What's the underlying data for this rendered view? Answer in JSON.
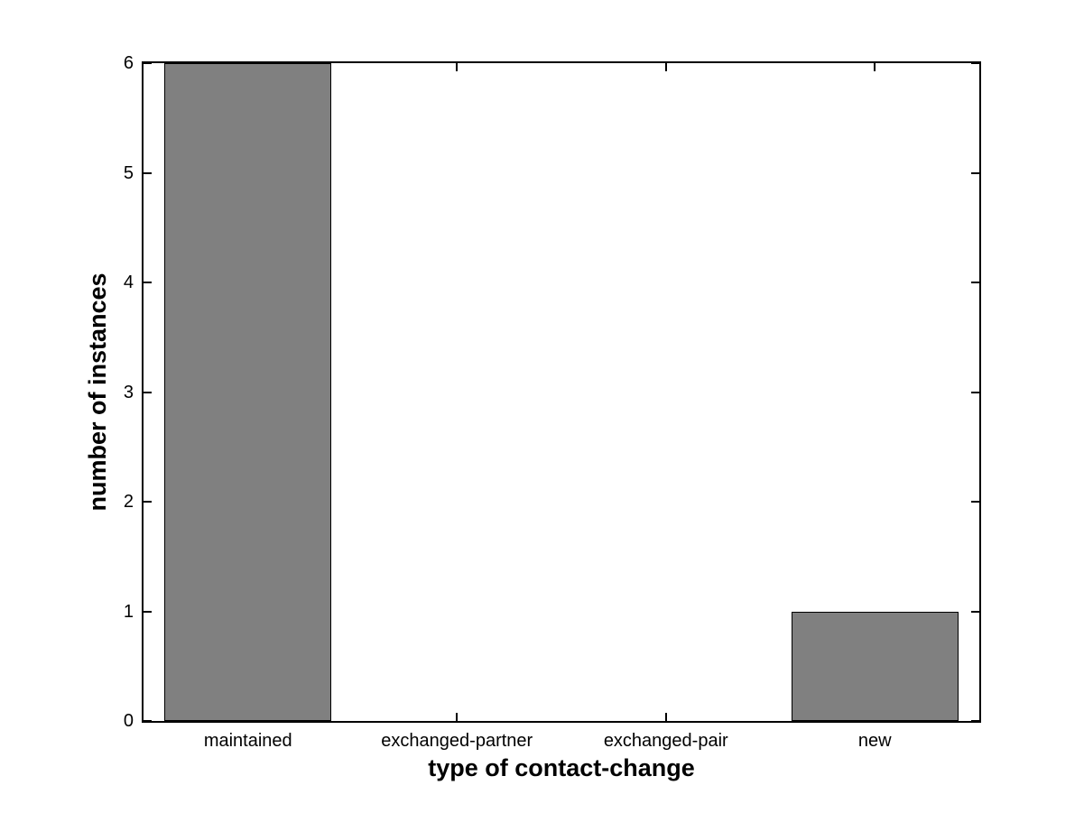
{
  "chart_data": {
    "type": "bar",
    "title": "",
    "categories": [
      "maintained",
      "exchanged-partner",
      "exchanged-pair",
      "new"
    ],
    "values": [
      6,
      0,
      0,
      1
    ],
    "xlabel": "type of contact-change",
    "ylabel": "number of instances",
    "ylim": [
      0,
      6
    ],
    "yticks": [
      0,
      1,
      2,
      3,
      4,
      5,
      6
    ],
    "ytick_labels": [
      "0",
      "1",
      "2",
      "3",
      "4",
      "5",
      "6"
    ],
    "bar_width_fraction": 0.8,
    "bar_color": "#808080",
    "bar_edge_color": "#000000",
    "axis_color": "#000000",
    "background_color": "#ffffff",
    "grid": false,
    "legend": "none",
    "tick_style": "inward-box"
  }
}
